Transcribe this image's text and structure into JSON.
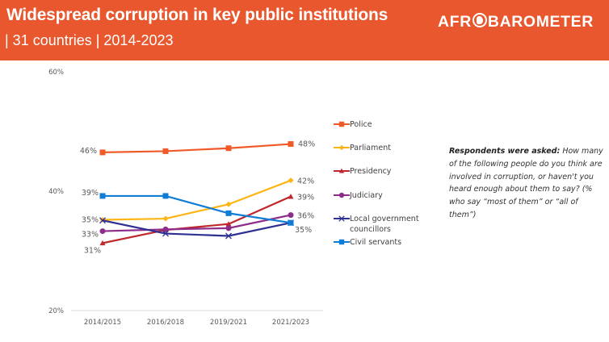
{
  "header": {
    "title": "Widespread corruption in key public institutions",
    "subtitle": "| 31 countries | 2014-2023",
    "logo_prefix": "AFR",
    "logo_suffix": "BAROMETER",
    "background_color": "#E8572D"
  },
  "note": {
    "lead": "Respondents were asked:",
    "text": " How many of the following people do you think are involved in corruption, or haven't you heard enough about them to say? (% who say “most of them” or “all of them”)"
  },
  "chart_data": {
    "type": "line",
    "title": "Widespread corruption in key public institutions",
    "subtitle": "31 countries | 2014-2023",
    "xlabel": "",
    "ylabel": "",
    "categories": [
      "2014/2015",
      "2016/2018",
      "2019/2021",
      "2021/2023"
    ],
    "ylim": [
      20,
      60
    ],
    "yticks": [
      20,
      40,
      60
    ],
    "ytick_labels": [
      "20%",
      "40%",
      "60%"
    ],
    "grid": false,
    "legend_position": "right",
    "series": [
      {
        "name": "Police",
        "color": "#F05A28",
        "marker": "square",
        "values": [
          46.5,
          46.7,
          47.2,
          47.9
        ],
        "labels": [
          "46%",
          null,
          null,
          "48%"
        ]
      },
      {
        "name": "Parliament",
        "color": "#FDB515",
        "marker": "diamond",
        "values": [
          35.2,
          35.4,
          37.8,
          41.8
        ],
        "labels": [
          "35%",
          null,
          null,
          "42%"
        ]
      },
      {
        "name": "Presidency",
        "color": "#C0272D",
        "marker": "triangle",
        "values": [
          31.3,
          33.5,
          34.5,
          39.1
        ],
        "labels": [
          "31%",
          null,
          null,
          "39%"
        ]
      },
      {
        "name": "Judiciary",
        "color": "#8E2C8A",
        "marker": "circle",
        "values": [
          33.3,
          33.6,
          33.8,
          36.0
        ],
        "labels": [
          "33%",
          null,
          null,
          "36%"
        ]
      },
      {
        "name": "Local government councillors",
        "legend_lines": [
          "Local government",
          "councillors"
        ],
        "color": "#2E3192",
        "marker": "x",
        "values": [
          35.1,
          32.9,
          32.5,
          34.7
        ],
        "labels": [
          null,
          null,
          null,
          null
        ]
      },
      {
        "name": "Civil servants",
        "color": "#0F7DD6",
        "marker": "square",
        "values": [
          39.2,
          39.2,
          36.3,
          34.7
        ],
        "labels": [
          "39%",
          null,
          null,
          "35%"
        ]
      }
    ]
  }
}
